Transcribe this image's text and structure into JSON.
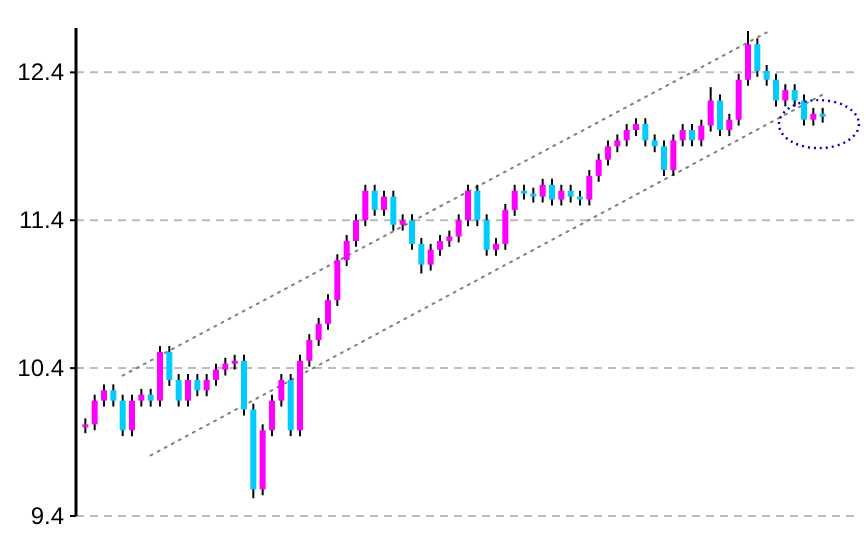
{
  "chart_data": {
    "type": "candlestick",
    "categories": [
      null,
      null,
      null,
      null,
      null,
      null,
      null,
      null,
      null,
      null,
      null,
      null,
      null,
      null,
      null,
      null,
      null,
      null,
      null,
      null,
      null,
      null,
      null,
      null,
      null,
      null,
      null,
      null,
      null,
      null,
      null,
      null,
      null,
      null,
      null,
      null,
      null,
      null,
      null,
      null,
      null,
      null,
      null,
      null,
      null,
      null,
      null,
      null,
      null,
      null,
      null,
      null,
      null,
      null,
      null,
      null,
      null,
      null,
      null,
      null,
      null,
      null,
      null,
      null,
      null,
      null,
      null,
      null,
      null,
      null,
      null,
      null,
      null,
      null,
      null,
      null,
      null,
      null,
      null,
      null
    ],
    "ohlc": [
      [
        10.0,
        10.06,
        9.96,
        10.02
      ],
      [
        10.02,
        10.22,
        9.98,
        10.18
      ],
      [
        10.18,
        10.29,
        10.14,
        10.25
      ],
      [
        10.25,
        10.29,
        10.14,
        10.18
      ],
      [
        10.18,
        10.22,
        9.94,
        9.98
      ],
      [
        9.98,
        10.22,
        9.94,
        10.18
      ],
      [
        10.18,
        10.26,
        10.14,
        10.22
      ],
      [
        10.22,
        10.26,
        10.14,
        10.18
      ],
      [
        10.18,
        10.55,
        10.14,
        10.51
      ],
      [
        10.51,
        10.55,
        10.28,
        10.32
      ],
      [
        10.32,
        10.36,
        10.14,
        10.18
      ],
      [
        10.18,
        10.36,
        10.14,
        10.32
      ],
      [
        10.32,
        10.36,
        10.21,
        10.25
      ],
      [
        10.25,
        10.36,
        10.21,
        10.32
      ],
      [
        10.32,
        10.43,
        10.28,
        10.39
      ],
      [
        10.39,
        10.47,
        10.35,
        10.43
      ],
      [
        10.43,
        10.49,
        10.39,
        10.45
      ],
      [
        10.45,
        10.49,
        10.08,
        10.12
      ],
      [
        10.12,
        10.16,
        9.52,
        9.58
      ],
      [
        9.58,
        10.02,
        9.54,
        9.98
      ],
      [
        9.98,
        10.22,
        9.94,
        10.18
      ],
      [
        10.18,
        10.36,
        10.14,
        10.32
      ],
      [
        10.32,
        10.36,
        9.94,
        9.98
      ],
      [
        9.98,
        10.49,
        9.94,
        10.45
      ],
      [
        10.45,
        10.63,
        10.41,
        10.59
      ],
      [
        10.59,
        10.74,
        10.55,
        10.7
      ],
      [
        10.7,
        10.9,
        10.66,
        10.86
      ],
      [
        10.86,
        11.17,
        10.82,
        11.13
      ],
      [
        11.13,
        11.3,
        11.09,
        11.26
      ],
      [
        11.26,
        11.44,
        11.22,
        11.4
      ],
      [
        11.4,
        11.64,
        11.36,
        11.6
      ],
      [
        11.6,
        11.64,
        11.43,
        11.47
      ],
      [
        11.47,
        11.6,
        11.43,
        11.56
      ],
      [
        11.56,
        11.6,
        11.33,
        11.37
      ],
      [
        11.37,
        11.44,
        11.33,
        11.4
      ],
      [
        11.4,
        11.44,
        11.2,
        11.24
      ],
      [
        11.24,
        11.28,
        11.04,
        11.1
      ],
      [
        11.1,
        11.24,
        11.06,
        11.2
      ],
      [
        11.2,
        11.3,
        11.16,
        11.26
      ],
      [
        11.26,
        11.33,
        11.22,
        11.29
      ],
      [
        11.29,
        11.44,
        11.25,
        11.4
      ],
      [
        11.4,
        11.64,
        11.36,
        11.6
      ],
      [
        11.6,
        11.64,
        11.36,
        11.4
      ],
      [
        11.4,
        11.44,
        11.16,
        11.2
      ],
      [
        11.2,
        11.28,
        11.16,
        11.24
      ],
      [
        11.24,
        11.51,
        11.2,
        11.47
      ],
      [
        11.47,
        11.64,
        11.43,
        11.6
      ],
      [
        11.6,
        11.64,
        11.54,
        11.58
      ],
      [
        11.58,
        11.62,
        11.52,
        11.56
      ],
      [
        11.56,
        11.68,
        11.52,
        11.64
      ],
      [
        11.64,
        11.68,
        11.5,
        11.54
      ],
      [
        11.54,
        11.64,
        11.5,
        11.6
      ],
      [
        11.6,
        11.64,
        11.52,
        11.56
      ],
      [
        11.56,
        11.6,
        11.5,
        11.54
      ],
      [
        11.54,
        11.74,
        11.5,
        11.7
      ],
      [
        11.7,
        11.85,
        11.66,
        11.81
      ],
      [
        11.81,
        11.94,
        11.77,
        11.9
      ],
      [
        11.9,
        11.98,
        11.86,
        11.94
      ],
      [
        11.94,
        12.05,
        11.9,
        12.01
      ],
      [
        12.01,
        12.09,
        11.97,
        12.05
      ],
      [
        12.05,
        12.09,
        11.9,
        11.94
      ],
      [
        11.94,
        11.98,
        11.86,
        11.9
      ],
      [
        11.9,
        11.94,
        11.7,
        11.74
      ],
      [
        11.74,
        11.98,
        11.7,
        11.94
      ],
      [
        11.94,
        12.05,
        11.9,
        12.01
      ],
      [
        12.01,
        12.05,
        11.9,
        11.94
      ],
      [
        11.94,
        12.08,
        11.9,
        12.04
      ],
      [
        12.04,
        12.3,
        12.0,
        12.21
      ],
      [
        12.21,
        12.25,
        11.97,
        12.01
      ],
      [
        12.01,
        12.12,
        11.97,
        12.08
      ],
      [
        12.08,
        12.39,
        12.04,
        12.35
      ],
      [
        12.35,
        12.68,
        12.31,
        12.59
      ],
      [
        12.59,
        12.63,
        12.37,
        12.41
      ],
      [
        12.41,
        12.45,
        12.31,
        12.35
      ],
      [
        12.35,
        12.39,
        12.17,
        12.21
      ],
      [
        12.21,
        12.32,
        12.17,
        12.28
      ],
      [
        12.28,
        12.32,
        12.17,
        12.21
      ],
      [
        12.21,
        12.25,
        12.04,
        12.08
      ],
      [
        12.08,
        12.16,
        12.04,
        12.12
      ],
      [
        12.12,
        12.16,
        12.06,
        12.1
      ]
    ],
    "colors": [
      "#ff00ff",
      "#ff00ff",
      "#ff00ff",
      "#00ccff",
      "#00ccff",
      "#ff00ff",
      "#ff00ff",
      "#00ccff",
      "#ff00ff",
      "#00ccff",
      "#00ccff",
      "#ff00ff",
      "#00ccff",
      "#ff00ff",
      "#ff00ff",
      "#ff00ff",
      "#ff00ff",
      "#00ccff",
      "#00ccff",
      "#ff00ff",
      "#ff00ff",
      "#ff00ff",
      "#00ccff",
      "#ff00ff",
      "#ff00ff",
      "#ff00ff",
      "#ff00ff",
      "#ff00ff",
      "#ff00ff",
      "#ff00ff",
      "#ff00ff",
      "#00ccff",
      "#ff00ff",
      "#00ccff",
      "#ff00ff",
      "#00ccff",
      "#00ccff",
      "#ff00ff",
      "#ff00ff",
      "#ff00ff",
      "#ff00ff",
      "#ff00ff",
      "#00ccff",
      "#00ccff",
      "#ff00ff",
      "#ff00ff",
      "#ff00ff",
      "#00ccff",
      "#00ccff",
      "#ff00ff",
      "#00ccff",
      "#ff00ff",
      "#00ccff",
      "#00ccff",
      "#ff00ff",
      "#ff00ff",
      "#ff00ff",
      "#ff00ff",
      "#ff00ff",
      "#ff00ff",
      "#00ccff",
      "#00ccff",
      "#00ccff",
      "#ff00ff",
      "#ff00ff",
      "#00ccff",
      "#ff00ff",
      "#ff00ff",
      "#00ccff",
      "#ff00ff",
      "#ff00ff",
      "#ff00ff",
      "#00ccff",
      "#00ccff",
      "#00ccff",
      "#ff00ff",
      "#00ccff",
      "#00ccff",
      "#ff00ff",
      "#00ccff"
    ],
    "series": [
      {
        "type": "line",
        "color": "#808080",
        "line_style": "dotted",
        "values": [
          null,
          null,
          null,
          null,
          10.35,
          null,
          null,
          null,
          null,
          null,
          null,
          null,
          null,
          null,
          null,
          null,
          null,
          null,
          null,
          null,
          null,
          null,
          null,
          null,
          null,
          null,
          null,
          null,
          null,
          null,
          null,
          null,
          null,
          null,
          null,
          null,
          null,
          null,
          null,
          null,
          null,
          null,
          null,
          null,
          null,
          null,
          null,
          null,
          null,
          null,
          null,
          null,
          null,
          null,
          null,
          null,
          null,
          null,
          null,
          null,
          null,
          null,
          null,
          null,
          null,
          null,
          null,
          null,
          null,
          null,
          null,
          null,
          null,
          12.67,
          null,
          null,
          null,
          null,
          null,
          null
        ]
      },
      {
        "type": "line",
        "color": "#808080",
        "line_style": "dotted",
        "values": [
          null,
          null,
          null,
          null,
          null,
          null,
          null,
          9.81,
          null,
          null,
          null,
          null,
          null,
          null,
          null,
          null,
          null,
          null,
          null,
          null,
          null,
          null,
          null,
          null,
          null,
          null,
          null,
          null,
          null,
          null,
          null,
          null,
          null,
          null,
          null,
          null,
          null,
          null,
          null,
          null,
          null,
          null,
          null,
          null,
          null,
          null,
          null,
          null,
          null,
          null,
          null,
          null,
          null,
          null,
          null,
          null,
          null,
          null,
          null,
          null,
          null,
          null,
          null,
          null,
          null,
          null,
          null,
          null,
          null,
          null,
          null,
          null,
          null,
          null,
          null,
          null,
          null,
          null,
          null,
          12.25
        ]
      }
    ],
    "ylim": [
      9.4,
      12.7
    ],
    "yticks": [
      9.4,
      10.4,
      11.4,
      12.4
    ],
    "grid": "y",
    "tick_labels": "y",
    "marker": "none"
  }
}
